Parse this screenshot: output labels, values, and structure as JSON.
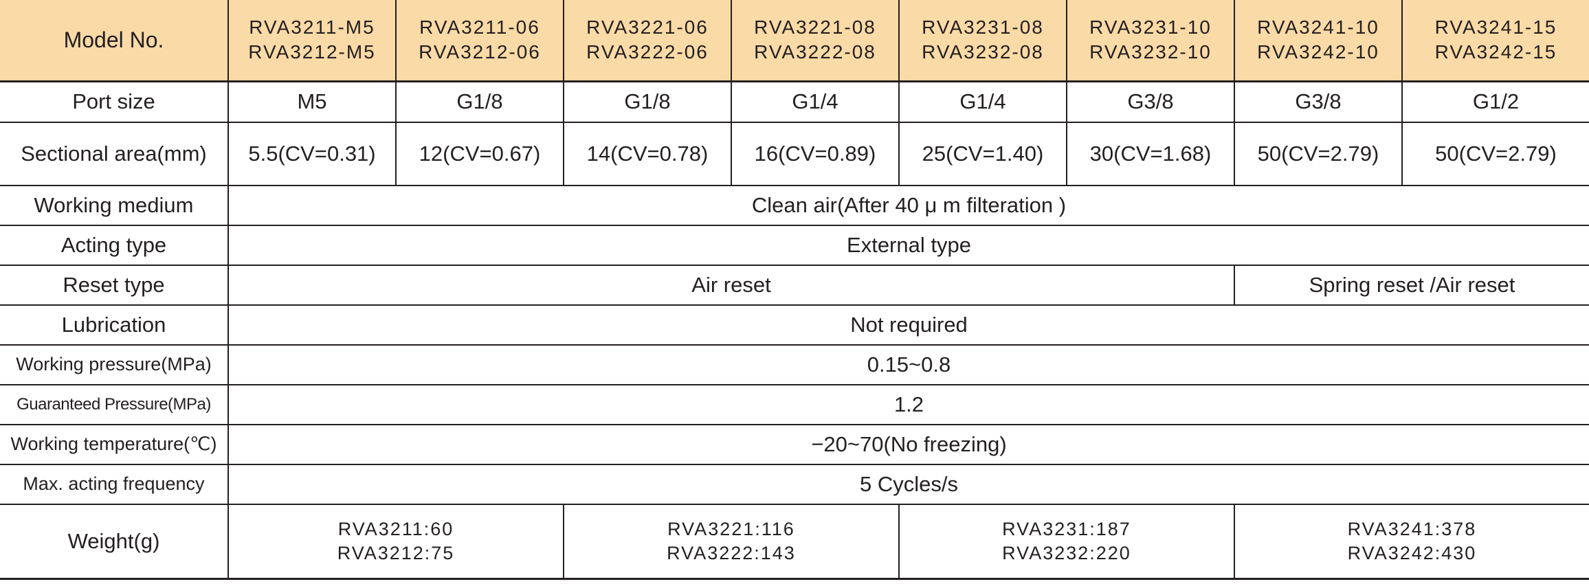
{
  "header_label": "Model No.",
  "models": [
    [
      "RVA3211-M5",
      "RVA3212-M5"
    ],
    [
      "RVA3211-06",
      "RVA3212-06"
    ],
    [
      "RVA3221-06",
      "RVA3222-06"
    ],
    [
      "RVA3221-08",
      "RVA3222-08"
    ],
    [
      "RVA3231-08",
      "RVA3232-08"
    ],
    [
      "RVA3231-10",
      "RVA3232-10"
    ],
    [
      "RVA3241-10",
      "RVA3242-10"
    ],
    [
      "RVA3241-15",
      "RVA3242-15"
    ]
  ],
  "port_size": {
    "label": "Port size",
    "values": [
      "M5",
      "G1/8",
      "G1/8",
      "G1/4",
      "G1/4",
      "G3/8",
      "G3/8",
      "G1/2"
    ]
  },
  "sectional_area": {
    "label": "Sectional area(mm)",
    "values": [
      "5.5(CV=0.31)",
      "12(CV=0.67)",
      "14(CV=0.78)",
      "16(CV=0.89)",
      "25(CV=1.40)",
      "30(CV=1.68)",
      "50(CV=2.79)",
      "50(CV=2.79)"
    ]
  },
  "working_medium": {
    "label": "Working medium",
    "value": "Clean air(After 40 μ m filteration )"
  },
  "acting_type": {
    "label": "Acting type",
    "value": "External type"
  },
  "reset_type": {
    "label": "Reset type",
    "value_a": "Air reset",
    "value_b": "Spring reset /Air reset"
  },
  "lubrication": {
    "label": "Lubrication",
    "value": "Not required"
  },
  "working_pressure": {
    "label": "Working pressure(MPa)",
    "value": "0.15~0.8"
  },
  "guaranteed_pressure": {
    "label": "Guaranteed Pressure(MPa)",
    "value": "1.2"
  },
  "working_temperature": {
    "label": "Working temperature(℃)",
    "value": "−20~70(No freezing)"
  },
  "max_frequency": {
    "label": "Max. acting frequency",
    "value": "5 Cycles/s"
  },
  "weight": {
    "label": "Weight(g)",
    "groups": [
      [
        "RVA3211:60",
        "RVA3212:75"
      ],
      [
        "RVA3221:116",
        "RVA3222:143"
      ],
      [
        "RVA3231:187",
        "RVA3232:220"
      ],
      [
        "RVA3241:378",
        "RVA3242:430"
      ]
    ]
  }
}
